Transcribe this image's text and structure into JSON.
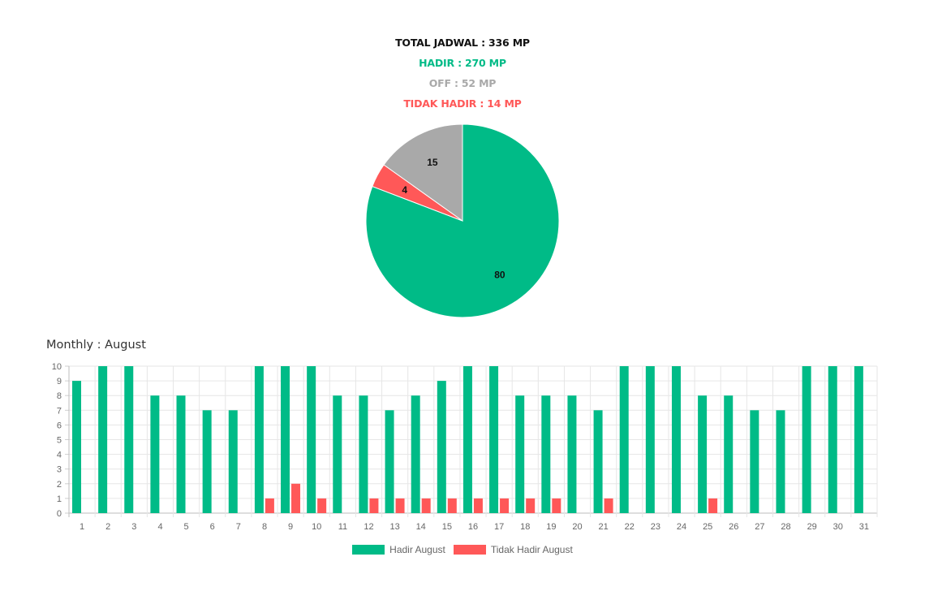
{
  "summary": {
    "total": "TOTAL JADWAL : 336 MP",
    "hadir": "HADIR : 270 MP",
    "off": "OFF : 52 MP",
    "tidak_hadir": "TIDAK HADIR : 14 MP"
  },
  "colors": {
    "hadir": "#00bb87",
    "off": "#a9a9a9",
    "tidak_hadir": "#ff5858",
    "total": "#111111"
  },
  "section_title": "Monthly : August",
  "chart_data": [
    {
      "type": "pie",
      "slices": [
        {
          "label": "Hadir",
          "value": 80,
          "color": "#00bb87"
        },
        {
          "label": "Tidak Hadir",
          "value": 4,
          "color": "#ff5858"
        },
        {
          "label": "Off",
          "value": 15,
          "color": "#a9a9a9"
        }
      ]
    },
    {
      "type": "bar",
      "categories": [
        "1",
        "2",
        "3",
        "4",
        "5",
        "6",
        "7",
        "8",
        "9",
        "10",
        "11",
        "12",
        "13",
        "14",
        "15",
        "16",
        "17",
        "18",
        "19",
        "20",
        "21",
        "22",
        "23",
        "24",
        "25",
        "26",
        "27",
        "28",
        "29",
        "30",
        "31"
      ],
      "series": [
        {
          "name": "Hadir August",
          "color": "#00bb87",
          "values": [
            9,
            10,
            10,
            8,
            8,
            7,
            7,
            10,
            10,
            10,
            8,
            8,
            7,
            8,
            9,
            10,
            10,
            8,
            8,
            8,
            7,
            10,
            10,
            10,
            8,
            8,
            7,
            7,
            10,
            10,
            10
          ]
        },
        {
          "name": "Tidak Hadir August",
          "color": "#ff5858",
          "values": [
            0,
            0,
            0,
            0,
            0,
            0,
            0,
            1,
            2,
            1,
            0,
            1,
            1,
            1,
            1,
            1,
            1,
            1,
            1,
            0,
            1,
            0,
            0,
            0,
            1,
            0,
            0,
            0,
            0,
            0,
            0
          ]
        }
      ],
      "ylim": [
        0,
        10
      ],
      "yticks": [
        0,
        1,
        2,
        3,
        4,
        5,
        6,
        7,
        8,
        9,
        10
      ],
      "grid": true,
      "legend": "bottom"
    }
  ]
}
